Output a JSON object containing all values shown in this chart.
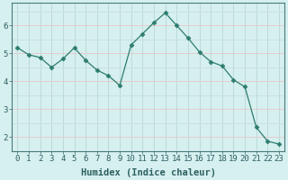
{
  "x": [
    0,
    1,
    2,
    3,
    4,
    5,
    6,
    7,
    8,
    9,
    10,
    11,
    12,
    13,
    14,
    15,
    16,
    17,
    18,
    19,
    20,
    21,
    22,
    23
  ],
  "y": [
    5.2,
    4.95,
    4.85,
    4.5,
    4.8,
    5.2,
    4.75,
    4.4,
    4.2,
    3.85,
    5.3,
    5.7,
    6.1,
    6.45,
    6.0,
    5.55,
    5.05,
    4.7,
    4.55,
    4.05,
    3.8,
    2.35,
    1.85,
    1.75
  ],
  "line_color": "#2d7d6f",
  "marker": "D",
  "marker_size": 2.5,
  "bg_color": "#d6efef",
  "grid_major_color": "#c5e3e3",
  "grid_minor_color": "#daf2f2",
  "axis_color": "#4a7a7a",
  "xlabel": "Humidex (Indice chaleur)",
  "xlim": [
    -0.5,
    23.5
  ],
  "ylim": [
    1.5,
    6.8
  ],
  "yticks": [
    2,
    3,
    4,
    5,
    6
  ],
  "xticks": [
    0,
    1,
    2,
    3,
    4,
    5,
    6,
    7,
    8,
    9,
    10,
    11,
    12,
    13,
    14,
    15,
    16,
    17,
    18,
    19,
    20,
    21,
    22,
    23
  ],
  "xlabel_fontsize": 7.5,
  "tick_fontsize": 6.5,
  "tick_color": "#2d6060",
  "label_color": "#2d6060"
}
